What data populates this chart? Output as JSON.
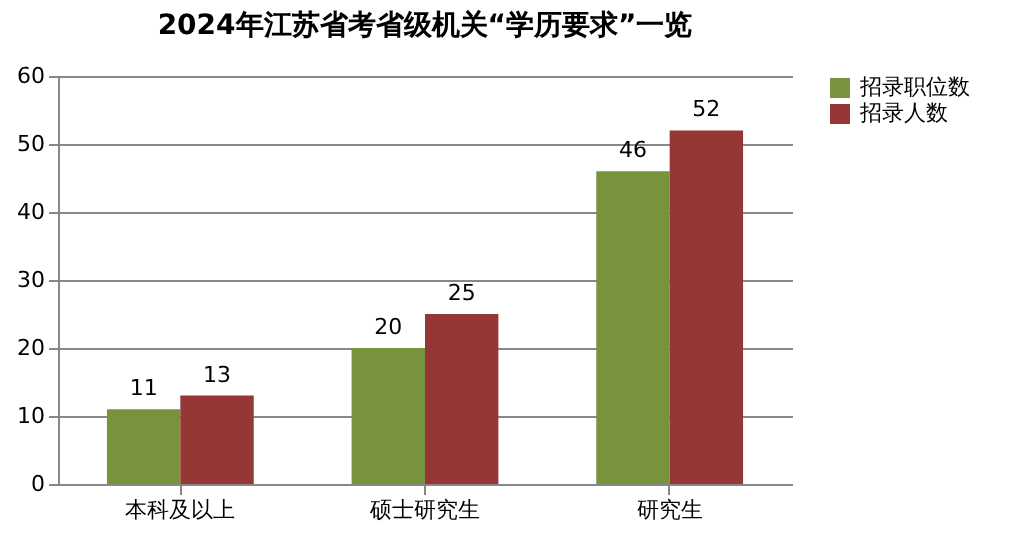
{
  "chart_data": {
    "type": "bar",
    "title": "2024年江苏省考省级机关“学历要求”一览",
    "categories": [
      "本科及以上",
      "硕士研究生",
      "研究生"
    ],
    "series": [
      {
        "name": "招录职位数",
        "color": "#77933c",
        "values": [
          11,
          20,
          46
        ]
      },
      {
        "name": "招录人数",
        "color": "#953735",
        "values": [
          13,
          25,
          52
        ]
      }
    ],
    "ylim": [
      0,
      60
    ],
    "yticks": [
      0,
      10,
      20,
      30,
      40,
      50,
      60
    ],
    "grid": "y",
    "legend": "right",
    "data_labels": true
  }
}
